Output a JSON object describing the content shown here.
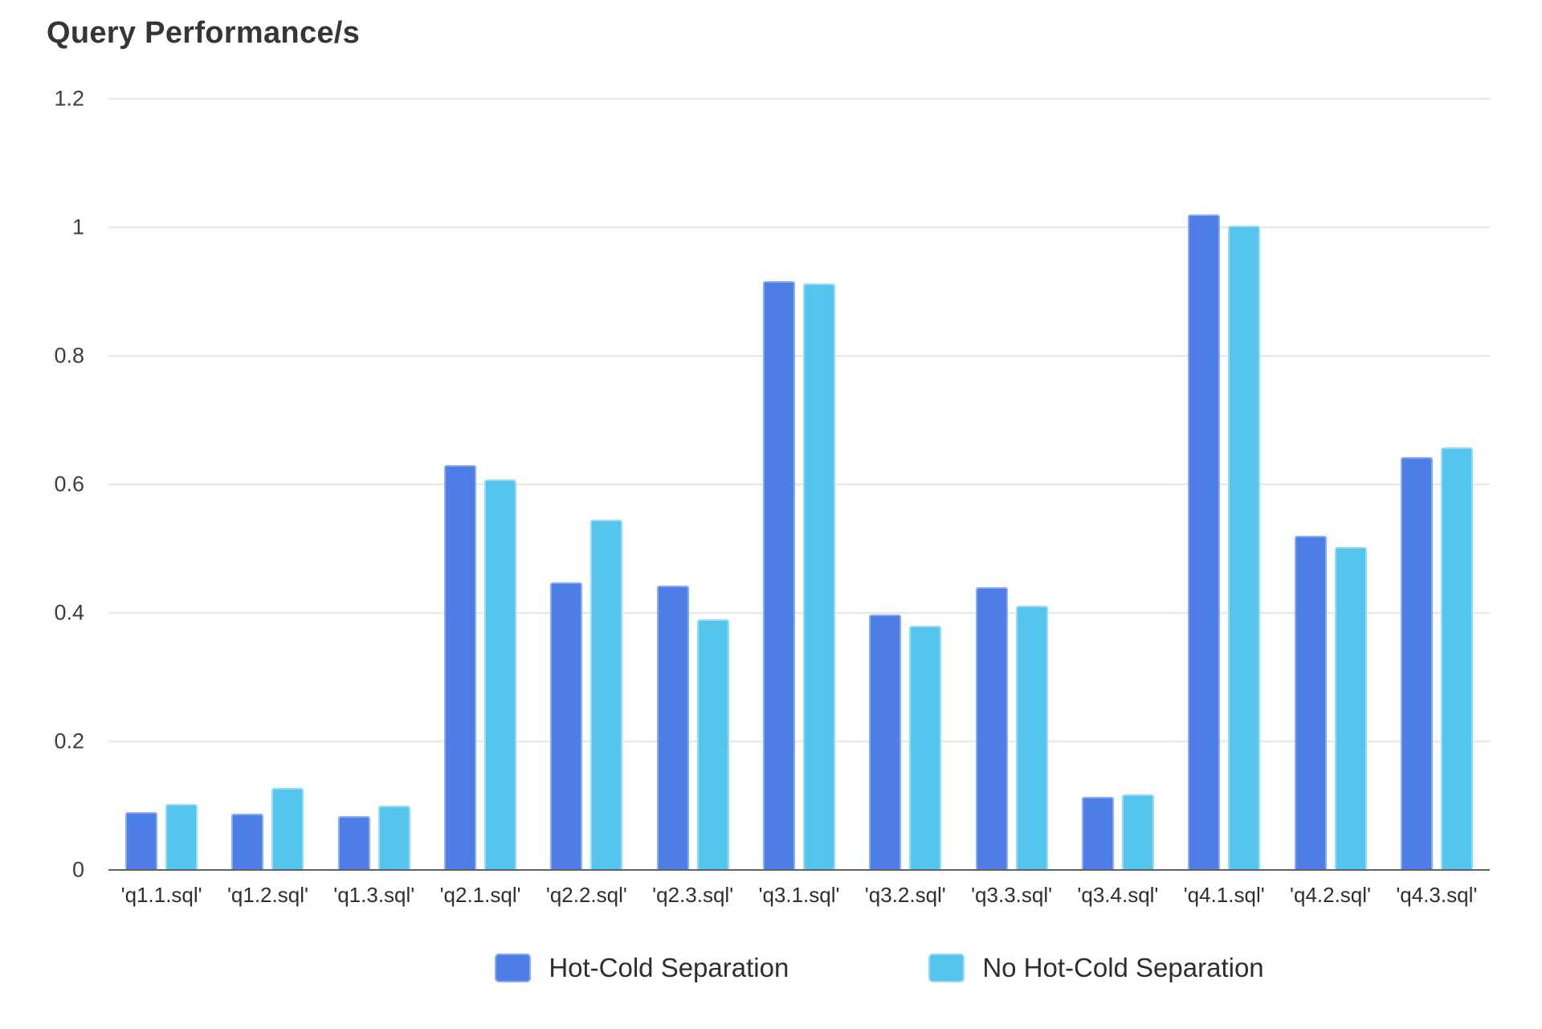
{
  "chart_data": {
    "type": "bar",
    "title": "Query Performance/s",
    "categories": [
      "'q1.1.sql'",
      "'q1.2.sql'",
      "'q1.3.sql'",
      "'q2.1.sql'",
      "'q2.2.sql'",
      "'q2.3.sql'",
      "'q3.1.sql'",
      "'q3.2.sql'",
      "'q3.3.sql'",
      "'q3.4.sql'",
      "'q4.1.sql'",
      "'q4.2.sql'",
      "'q4.3.sql'"
    ],
    "series": [
      {
        "name": "Hot-Cold Separation",
        "color": "#4D7EE8",
        "border_color": "#89ABF1",
        "values": [
          0.09,
          0.087,
          0.084,
          0.63,
          0.448,
          0.442,
          0.916,
          0.397,
          0.44,
          0.114,
          1.02,
          0.52,
          0.643
        ]
      },
      {
        "name": "No Hot-Cold Separation",
        "color": "#54C6EE",
        "border_color": "#97DCF6",
        "values": [
          0.103,
          0.128,
          0.1,
          0.608,
          0.545,
          0.39,
          0.913,
          0.38,
          0.411,
          0.117,
          1.003,
          0.502,
          0.658
        ]
      }
    ],
    "xlabel": "",
    "ylabel": "",
    "ylim": [
      0,
      1.2
    ],
    "yticks": [
      0,
      0.2,
      0.4,
      0.6,
      0.8,
      1,
      1.2
    ],
    "ytick_labels": [
      "0",
      "0.2",
      "0.4",
      "0.6",
      "0.8",
      "1",
      "1.2"
    ],
    "grid": true,
    "legend_position": "bottom"
  },
  "colors": {
    "background": "#ffffff",
    "title_text": "#363636",
    "axis_text": "#3d3d3d",
    "gridline": "#e6e6e6",
    "axis_line": "#616161"
  }
}
